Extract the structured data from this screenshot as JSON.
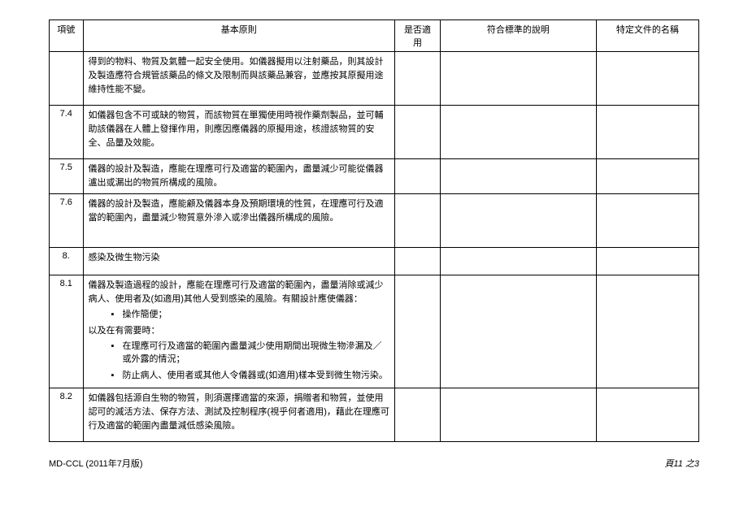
{
  "headers": {
    "num": "項號",
    "principle": "基本原則",
    "apply": "是否適用",
    "explain": "符合標準的說明",
    "doc": "特定文件的名稱"
  },
  "rows": [
    {
      "num": "",
      "content": "得到的物料、物質及氣體一起安全使用。如儀器擬用以注射藥品，則其設計及製造應符合規管該藥品的條文及限制而與該藥品兼容，並應按其原擬用途維持性能不變。"
    },
    {
      "num": "7.4",
      "content": "如儀器包含不可或缺的物質，而該物質在單獨使用時視作藥劑製品，並可輔助該儀器在人體上發揮作用，則應因應儀器的原擬用途，核證該物質的安全、品量及效能。"
    },
    {
      "num": "7.5",
      "content": "儀器的設計及製造，應能在理應可行及適當的範圍內，盡量減少可能從儀器瀘出或漏出的物質所構成的風險。"
    },
    {
      "num": "7.6",
      "content": "儀器的設計及製造，應能顧及儀器本身及預期環境的性質，在理應可行及適當的範圍內，盡量減少物質意外滲入或滲出儀器所構成的風險。"
    },
    {
      "num": "8.",
      "content": "感染及微生物污染"
    },
    {
      "num": "8.1",
      "content_main": "儀器及製造過程的設計，應能在理應可行及適當的範圍內，盡量消除或減少病人、使用者及(如適用)其他人受到感染的風險。有關設計應使儀器：",
      "bullets1": [
        "操作簡便；"
      ],
      "mid": "以及在有需要時：",
      "bullets2": [
        "在理應可行及適當的範圍內盡量減少使用期間出現微生物滲漏及／或外露的情況；",
        "防止病人、使用者或其他人令儀器或(如適用)樣本受到微生物污染。"
      ]
    },
    {
      "num": "8.2",
      "content": "如儀器包括源自生物的物質，則須選擇適當的來源，捐贈者和物質，並使用認可的滅活方法、保存方法、測試及控制程序(視乎何者適用)，藉此在理應可行及適當的範圍內盡量減低感染風險。"
    }
  ],
  "footer": {
    "left": "MD-CCL (2011年7月版)",
    "right": "頁11 之3"
  }
}
